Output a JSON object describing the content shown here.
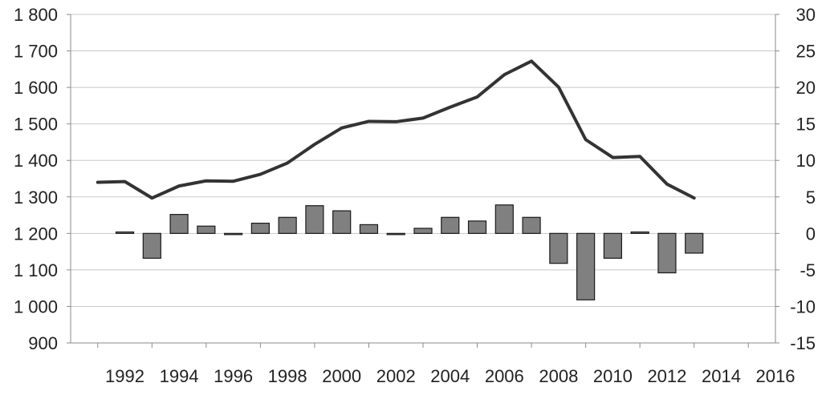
{
  "chart_data": {
    "type": "bar+line",
    "title": "",
    "xlabel": "",
    "ylabel_left": "",
    "ylabel_right": "",
    "x_tick_labels": [
      "1992",
      "1994",
      "1996",
      "1998",
      "2000",
      "2002",
      "2004",
      "2006",
      "2008",
      "2010",
      "2012",
      "2014",
      "2016"
    ],
    "x_range": [
      1990,
      2016
    ],
    "left_axis": {
      "ylim": [
        900,
        1800
      ],
      "ticks": [
        900,
        1000,
        1100,
        1200,
        1300,
        1400,
        1500,
        1600,
        1700,
        1800
      ],
      "tick_labels": [
        "900",
        "1 000",
        "1 100",
        "1 200",
        "1 300",
        "1 400",
        "1 500",
        "1 600",
        "1 700",
        "1 800"
      ]
    },
    "right_axis": {
      "ylim": [
        -15,
        30
      ],
      "ticks": [
        -15,
        -10,
        -5,
        0,
        5,
        10,
        15,
        20,
        25,
        30
      ],
      "tick_labels": [
        "-15",
        "-10",
        "-5",
        "0",
        "5",
        "10",
        "15",
        "20",
        "25",
        "30"
      ]
    },
    "grid": true,
    "legend": "none",
    "line_series": {
      "axis": "left",
      "color": "#333333",
      "x": [
        1991,
        1992,
        1993,
        1994,
        1995,
        1996,
        1997,
        1998,
        1999,
        2000,
        2001,
        2002,
        2003,
        2004,
        2005,
        2006,
        2007,
        2008,
        2009,
        2010,
        2011,
        2012,
        2013
      ],
      "values": [
        1340,
        1342,
        1297,
        1330,
        1344,
        1343,
        1362,
        1393,
        1444,
        1489,
        1507,
        1506,
        1516,
        1546,
        1574,
        1635,
        1672,
        1601,
        1457,
        1408,
        1411,
        1335,
        1297
      ]
    },
    "bar_series": {
      "axis": "right",
      "color": "#808080",
      "x": [
        1992,
        1993,
        1994,
        1995,
        1996,
        1997,
        1998,
        1999,
        2000,
        2001,
        2002,
        2003,
        2004,
        2005,
        2006,
        2007,
        2008,
        2009,
        2010,
        2011,
        2012,
        2013
      ],
      "values": [
        0.2,
        -3.4,
        2.6,
        1.0,
        -0.1,
        1.4,
        2.2,
        3.8,
        3.1,
        1.2,
        -0.1,
        0.7,
        2.2,
        1.7,
        3.9,
        2.2,
        -4.1,
        -9.1,
        -3.4,
        0.2,
        -5.4,
        -2.7
      ]
    }
  }
}
